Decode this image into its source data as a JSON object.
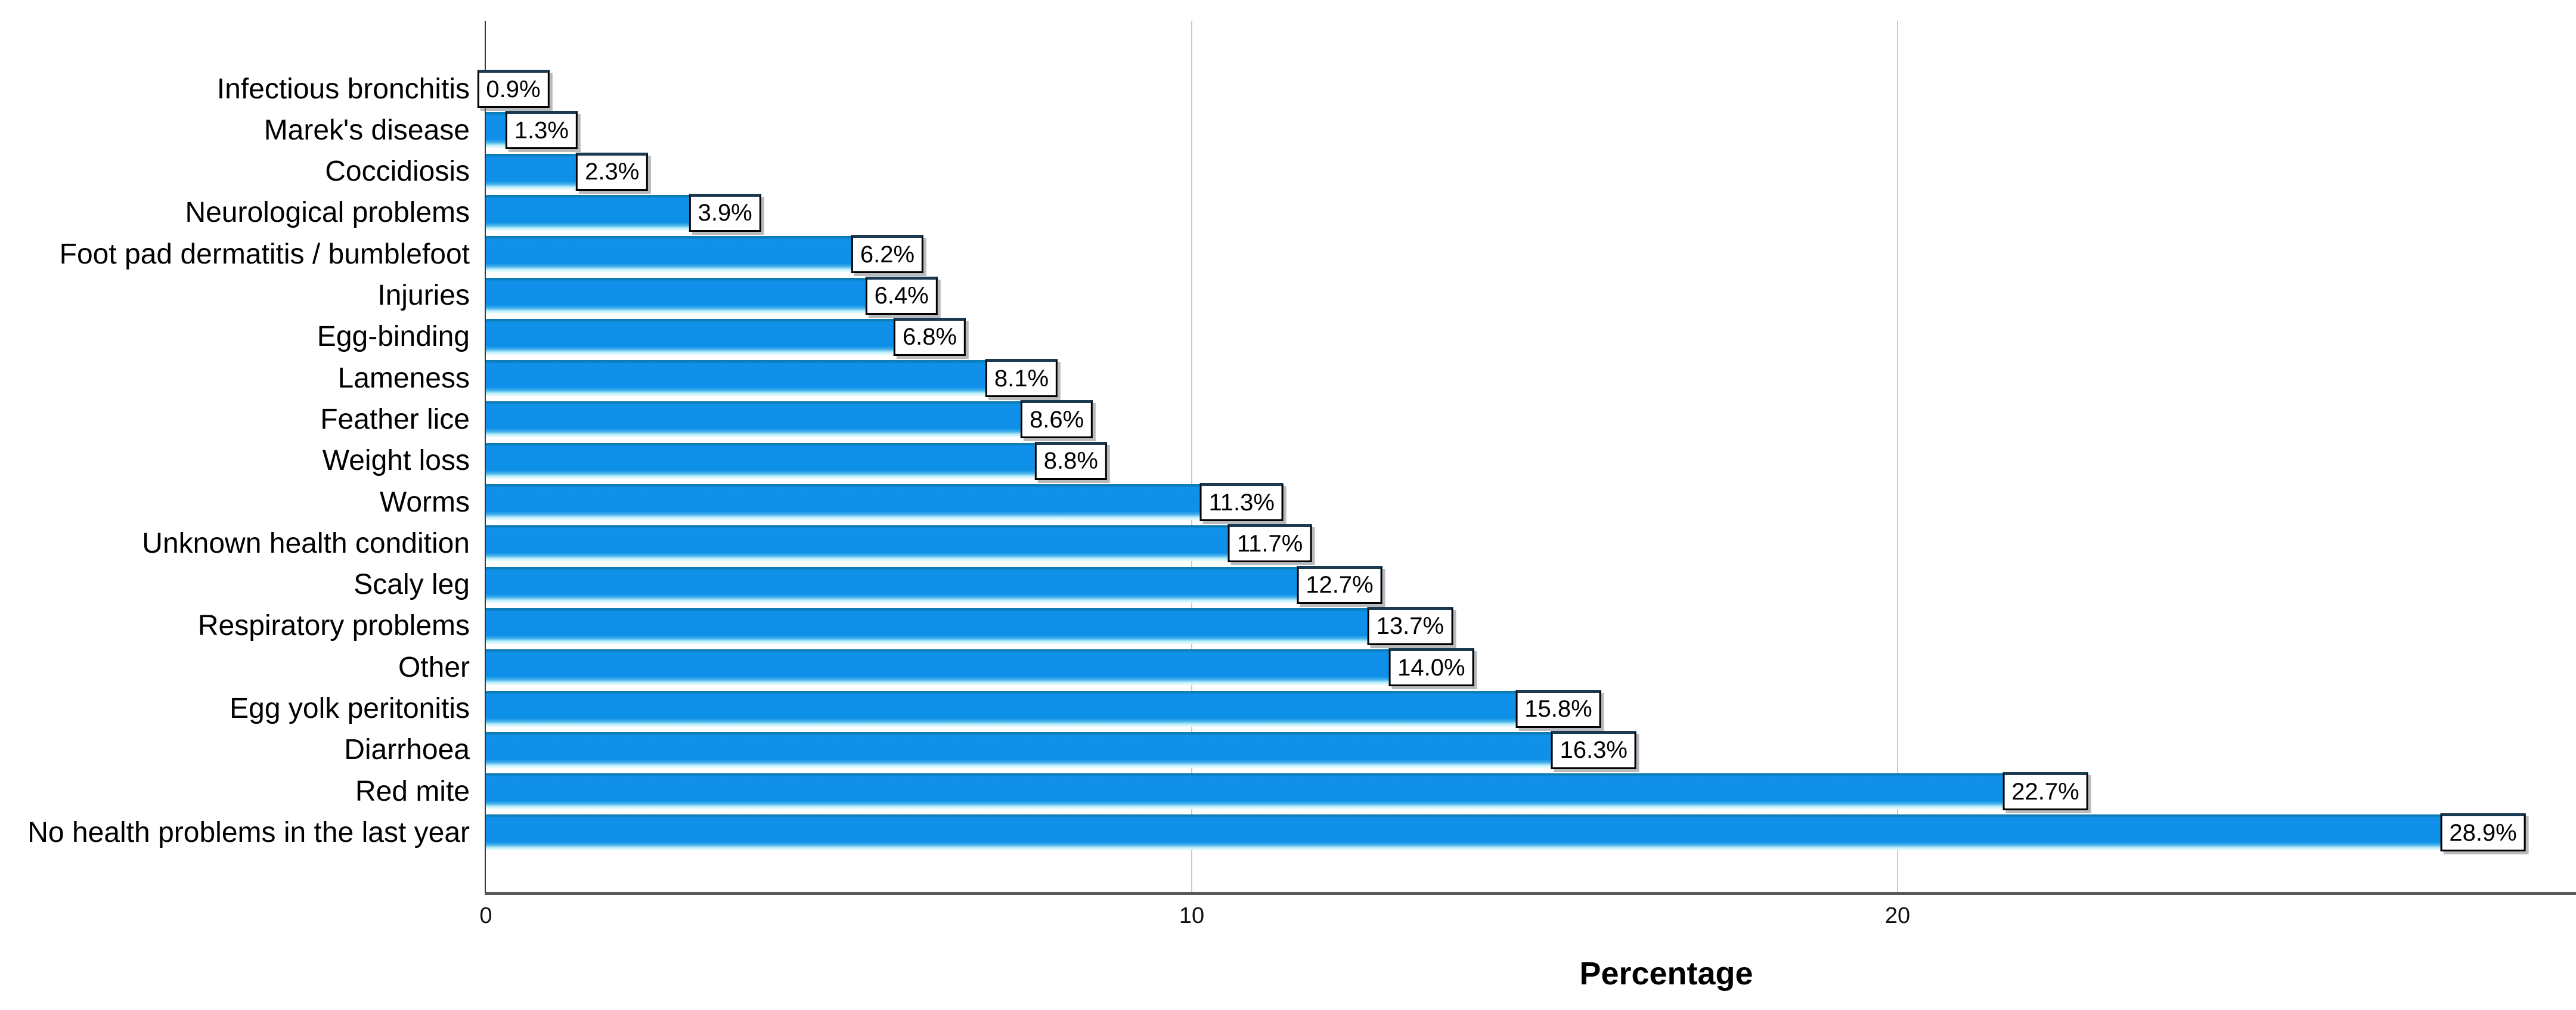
{
  "chart_data": {
    "type": "bar",
    "orientation": "horizontal",
    "title": "",
    "xlabel": "Percentage",
    "ylabel": "",
    "categories": [
      "Infectious bronchitis",
      "Marek's disease",
      "Coccidiosis",
      "Neurological problems",
      "Foot pad dermatitis / bumblefoot",
      "Injuries",
      "Egg-binding",
      "Lameness",
      "Feather lice",
      "Weight loss",
      "Worms",
      "Unknown health condition",
      "Scaly leg",
      "Respiratory problems",
      "Other",
      "Egg yolk peritonitis",
      "Diarrhoea",
      "Red mite",
      "No health problems in the last year"
    ],
    "values": [
      0.9,
      1.3,
      2.3,
      3.9,
      6.2,
      6.4,
      6.8,
      8.1,
      8.6,
      8.8,
      11.3,
      11.7,
      12.7,
      13.7,
      14.0,
      15.8,
      16.3,
      22.7,
      28.9
    ],
    "value_labels": [
      "0.9%",
      "1.3%",
      "2.3%",
      "3.9%",
      "6.2%",
      "6.4%",
      "6.8%",
      "8.1%",
      "8.6%",
      "8.8%",
      "11.3%",
      "11.7%",
      "12.7%",
      "13.7%",
      "14.0%",
      "15.8%",
      "16.3%",
      "22.7%",
      "28.9%"
    ],
    "xlim": [
      0,
      29.6
    ],
    "xticks": [
      0,
      10,
      20
    ],
    "xtick_labels": [
      "0",
      "10",
      "20"
    ],
    "grid": "vertical gridlines at 10 and 20",
    "legend": "none",
    "colors": {
      "bar_fill": "#0f90e8",
      "bar_top_edge": "#0d7cb4",
      "bar_bottom_bevel": "#bff0fa",
      "gridline": "#c9c9c9",
      "y_axis_line": "#3a3a3a",
      "x_axis_line": "#58595b",
      "label_box_bg": "#ffffff",
      "label_box_border": "#000000",
      "label_box_top_edge": "#1a3a52",
      "text": "#000000"
    }
  }
}
